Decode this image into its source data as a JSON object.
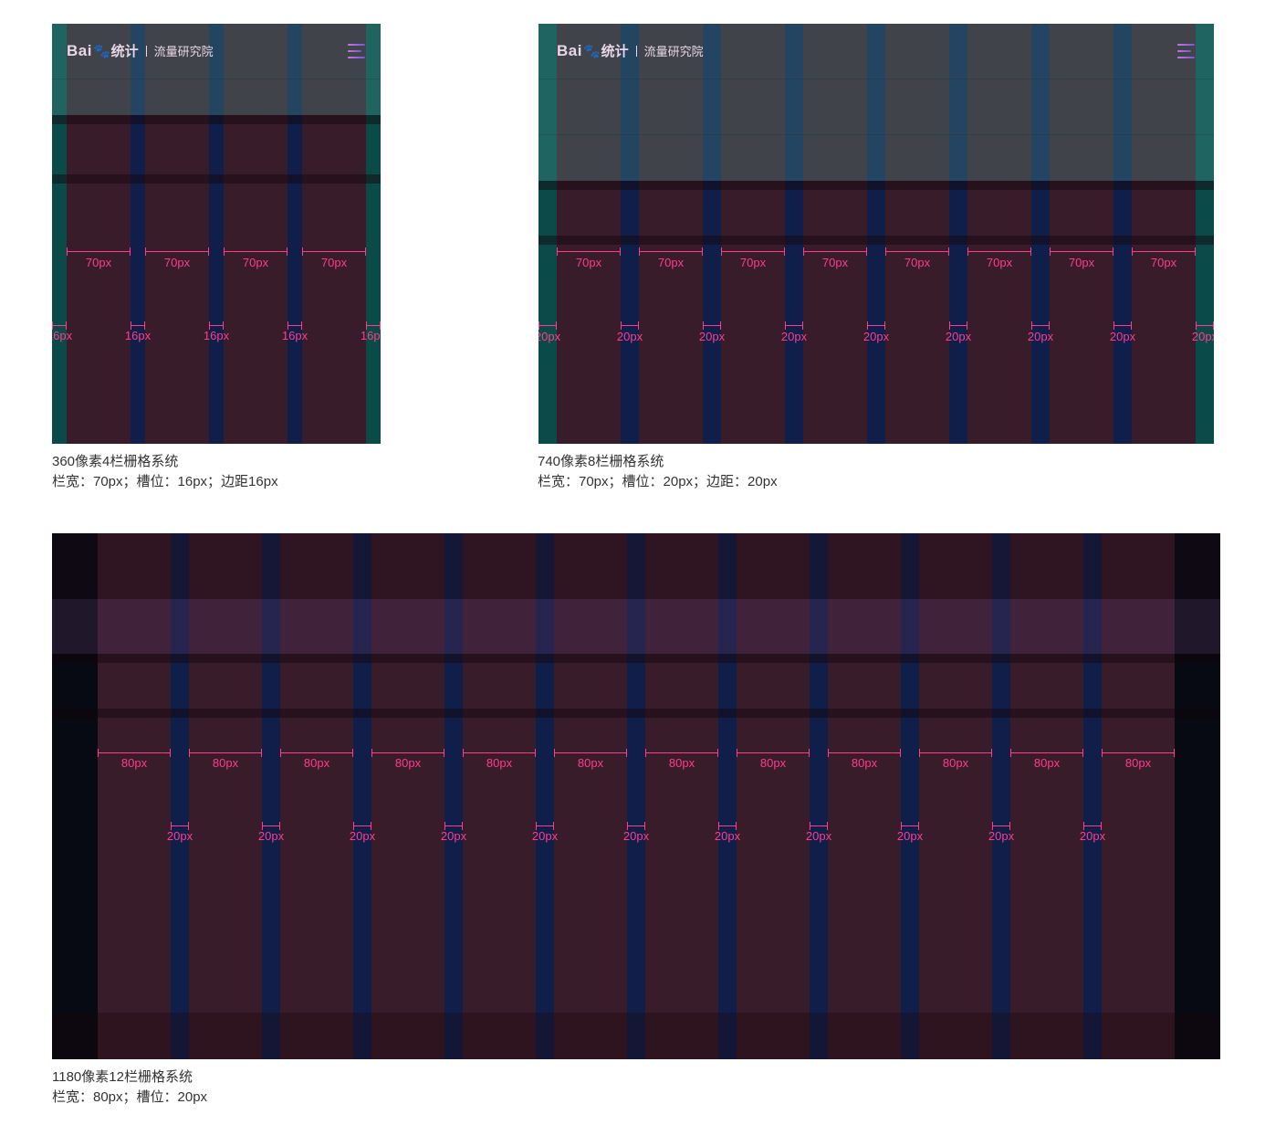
{
  "panels": [
    {
      "id": "grid-360",
      "logo": {
        "brand": "Bai",
        "paw": "🐾",
        "stat": "统计",
        "subtitle": "流量研究院"
      },
      "menu_icon": "hamburger-menu-icon",
      "columns": 4,
      "column_width_label": "70px",
      "gutter_label": "16px",
      "caption_title": "360像素4栏栅格系统",
      "caption_specs": "栏宽：70px；槽位：16px；边距16px"
    },
    {
      "id": "grid-740",
      "logo": {
        "brand": "Bai",
        "paw": "🐾",
        "stat": "统计",
        "subtitle": "流量研究院"
      },
      "menu_icon": "hamburger-menu-icon",
      "columns": 8,
      "column_width_label": "70px",
      "gutter_label": "20px",
      "caption_title": "740像素8栏栅格系统",
      "caption_specs": "栏宽：70px；槽位：20px；边距：20px"
    },
    {
      "id": "grid-1180",
      "columns": 12,
      "column_width_label": "80px",
      "gutter_label": "20px",
      "caption_title": "1180像素12栏栅格系统",
      "caption_specs": "栏宽：80px；槽位：20px"
    }
  ],
  "colors": {
    "column": "#381c2a",
    "gutter": "#101f4a",
    "margin_teal": "#0a4a48",
    "margin_dark": "#070a13",
    "measure": "#ff3d8b",
    "caption_text": "#333333"
  }
}
